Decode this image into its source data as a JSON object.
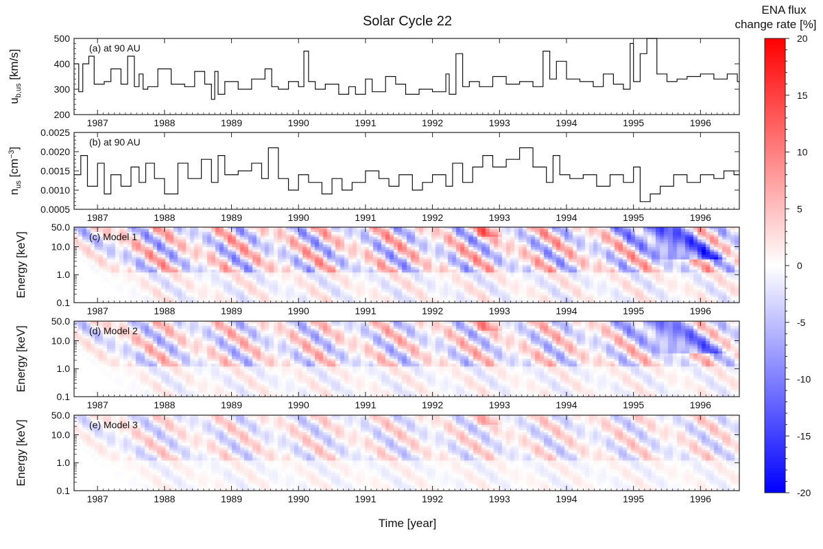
{
  "chart_data": {
    "type": "multi-panel",
    "title": "Solar Cycle 22",
    "xlabel": "Time [year]",
    "xlim": [
      1986.65,
      1996.58
    ],
    "x_ticks": [
      "1987",
      "1988",
      "1989",
      "1990",
      "1991",
      "1992",
      "1993",
      "1994",
      "1995",
      "1996"
    ],
    "colorbar": {
      "label_line1": "ENA flux",
      "label_line2": "change rate [%]",
      "range": [
        -20,
        20
      ],
      "ticks": [
        "20",
        "15",
        "10",
        "5",
        "0",
        "-5",
        "-10",
        "-15",
        "-20"
      ],
      "colors": {
        "low": "#0000ff",
        "mid": "#ffffff",
        "high": "#ff0000"
      }
    },
    "panels": [
      {
        "id": "a",
        "type": "line",
        "annotation": "(a) at 90 AU",
        "ylabel_main": "u",
        "ylabel_sub": "b,us",
        "ylabel_unit": " [km/s]",
        "ylim": [
          200,
          500
        ],
        "y_ticks": [
          "200",
          "300",
          "400",
          "500"
        ],
        "series": [
          {
            "name": "u_b,us",
            "x": [
              1986.65,
              1986.72,
              1986.78,
              1986.87,
              1986.95,
              1987.1,
              1987.2,
              1987.35,
              1987.45,
              1987.55,
              1987.62,
              1987.68,
              1987.75,
              1987.9,
              1988.1,
              1988.3,
              1988.45,
              1988.6,
              1988.7,
              1988.75,
              1988.8,
              1988.9,
              1989.1,
              1989.3,
              1989.5,
              1989.6,
              1989.7,
              1989.85,
              1990.0,
              1990.08,
              1990.15,
              1990.25,
              1990.4,
              1990.6,
              1990.75,
              1990.85,
              1991.0,
              1991.1,
              1991.3,
              1991.45,
              1991.6,
              1991.8,
              1992.0,
              1992.2,
              1992.25,
              1992.35,
              1992.45,
              1992.55,
              1992.7,
              1992.9,
              1993.1,
              1993.3,
              1993.5,
              1993.65,
              1993.75,
              1993.85,
              1994.0,
              1994.2,
              1994.4,
              1994.55,
              1994.7,
              1994.85,
              1994.95,
              1995.0,
              1995.1,
              1995.2,
              1995.35,
              1995.5,
              1995.65,
              1995.8,
              1996.0,
              1996.2,
              1996.4,
              1996.55
            ],
            "y": [
              400,
              290,
              400,
              430,
              320,
              330,
              380,
              320,
              430,
              310,
              360,
              300,
              310,
              380,
              320,
              310,
              370,
              320,
              260,
              370,
              280,
              330,
              300,
              340,
              380,
              310,
              300,
              330,
              310,
              450,
              330,
              300,
              320,
              280,
              310,
              280,
              340,
              290,
              350,
              320,
              280,
              300,
              290,
              360,
              280,
              440,
              310,
              330,
              310,
              350,
              320,
              330,
              310,
              450,
              340,
              410,
              340,
              330,
              310,
              360,
              320,
              300,
              480,
              330,
              440,
              500,
              360,
              330,
              340,
              350,
              360,
              340,
              360,
              330
            ]
          }
        ]
      },
      {
        "id": "b",
        "type": "line",
        "annotation": "(b) at 90 AU",
        "ylabel_main": "n",
        "ylabel_sub": "us",
        "ylabel_unit": " [cm",
        "ylabel_sup": "−3",
        "ylabel_close": "]",
        "ylim": [
          0.0005,
          0.0025
        ],
        "y_ticks": [
          "0.0005",
          "0.0010",
          "0.0015",
          "0.0020",
          "0.0025"
        ],
        "series": [
          {
            "name": "n_us",
            "x": [
              1986.65,
              1986.75,
              1986.85,
              1987.0,
              1987.1,
              1987.2,
              1987.35,
              1987.5,
              1987.62,
              1987.72,
              1987.85,
              1988.0,
              1988.2,
              1988.35,
              1988.55,
              1988.7,
              1988.8,
              1988.9,
              1989.1,
              1989.3,
              1989.45,
              1989.55,
              1989.7,
              1989.85,
              1990.0,
              1990.15,
              1990.35,
              1990.5,
              1990.65,
              1990.8,
              1991.0,
              1991.2,
              1991.35,
              1991.5,
              1991.7,
              1991.85,
              1992.0,
              1992.2,
              1992.3,
              1992.45,
              1992.6,
              1992.75,
              1992.9,
              1993.1,
              1993.3,
              1993.5,
              1993.7,
              1993.8,
              1993.9,
              1994.05,
              1994.25,
              1994.45,
              1994.65,
              1994.85,
              1995.0,
              1995.1,
              1995.25,
              1995.4,
              1995.6,
              1995.8,
              1996.0,
              1996.2,
              1996.35,
              1996.5
            ],
            "y": [
              0.0014,
              0.0019,
              0.0011,
              0.0017,
              0.0009,
              0.0014,
              0.0011,
              0.0016,
              0.0012,
              0.0017,
              0.0013,
              0.0009,
              0.0017,
              0.0013,
              0.0018,
              0.0012,
              0.0019,
              0.0014,
              0.0015,
              0.0017,
              0.0013,
              0.0021,
              0.0013,
              0.001,
              0.0014,
              0.0012,
              0.0009,
              0.0013,
              0.001,
              0.0012,
              0.0015,
              0.0013,
              0.0011,
              0.0014,
              0.001,
              0.0012,
              0.0014,
              0.0011,
              0.0017,
              0.0012,
              0.0016,
              0.0019,
              0.0016,
              0.0018,
              0.0021,
              0.0016,
              0.0012,
              0.0019,
              0.0014,
              0.0013,
              0.0014,
              0.0011,
              0.0014,
              0.0012,
              0.0016,
              0.0007,
              0.0009,
              0.0011,
              0.0014,
              0.0012,
              0.0014,
              0.0013,
              0.0015,
              0.0014
            ]
          }
        ]
      },
      {
        "id": "c",
        "type": "heatmap",
        "annotation": "(c) Model 1",
        "ylabel": "Energy [keV]",
        "ylim": [
          0.1,
          50.0
        ],
        "y_scale": "log",
        "y_ticks": [
          "50.0",
          "10.0",
          "1.0",
          "0.1"
        ],
        "amplitude": 1.0,
        "late_blue_feature": true
      },
      {
        "id": "d",
        "type": "heatmap",
        "annotation": "(d) Model 2",
        "ylabel": "Energy [keV]",
        "ylim": [
          0.1,
          50.0
        ],
        "y_scale": "log",
        "y_ticks": [
          "50.0",
          "10.0",
          "1.0",
          "0.1"
        ],
        "amplitude": 0.8,
        "late_blue_feature": true
      },
      {
        "id": "e",
        "type": "heatmap",
        "annotation": "(e) Model 3",
        "ylabel": "Energy [keV]",
        "ylim": [
          0.1,
          50.0
        ],
        "y_scale": "log",
        "y_ticks": [
          "50.0",
          "10.0",
          "1.0",
          "0.1"
        ],
        "amplitude": 0.55,
        "late_blue_feature": false
      }
    ]
  }
}
